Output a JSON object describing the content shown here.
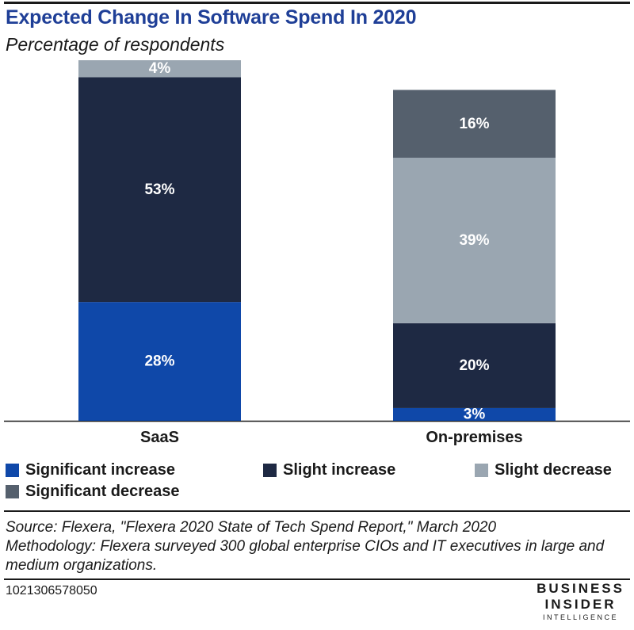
{
  "header": {
    "title": "Expected Change In Software Spend In 2020",
    "subtitle": "Percentage of respondents"
  },
  "colors": {
    "significant_increase": "#0f48a9",
    "slight_increase": "#1e2943",
    "slight_decrease": "#9aa6b1",
    "significant_decrease": "#55606d",
    "title": "#1f3f97"
  },
  "chart_data": {
    "type": "bar",
    "stacked": true,
    "title": "Expected Change In Software Spend In 2020",
    "subtitle": "Percentage of respondents",
    "categories": [
      "SaaS",
      "On-premises"
    ],
    "series": [
      {
        "name": "Significant increase",
        "values": [
          28,
          3
        ],
        "labels": [
          "28%",
          "3%"
        ],
        "color": "#0f48a9"
      },
      {
        "name": "Slight increase",
        "values": [
          53,
          20
        ],
        "labels": [
          "53%",
          "20%"
        ],
        "color": "#1e2943"
      },
      {
        "name": "Slight decrease",
        "values": [
          4,
          39
        ],
        "labels": [
          "4%",
          "39%"
        ],
        "color": "#9aa6b1"
      },
      {
        "name": "Significant decrease",
        "values": [
          0,
          16
        ],
        "labels": [
          "",
          "16%"
        ],
        "color": "#55606d"
      }
    ],
    "xlabel": "",
    "ylabel": "",
    "ylim": [
      0,
      85
    ],
    "grid": false,
    "legend_position": "bottom"
  },
  "legend": {
    "items": [
      {
        "label": "Significant increase",
        "color": "#0f48a9"
      },
      {
        "label": "Slight increase",
        "color": "#1e2943"
      },
      {
        "label": "Slight decrease",
        "color": "#9aa6b1"
      },
      {
        "label": "Significant decrease",
        "color": "#55606d"
      }
    ]
  },
  "footer": {
    "source": "Source: Flexera, \"Flexera 2020 State of Tech Spend Report,\" March 2020",
    "methodology": "Methodology: Flexera surveyed 300 global enterprise CIOs and IT executives in large and medium organizations.",
    "chart_id": "1021306578050"
  },
  "logo": {
    "line1": "BUSINESS",
    "line2": "INSIDER",
    "line3": "INTELLIGENCE"
  }
}
